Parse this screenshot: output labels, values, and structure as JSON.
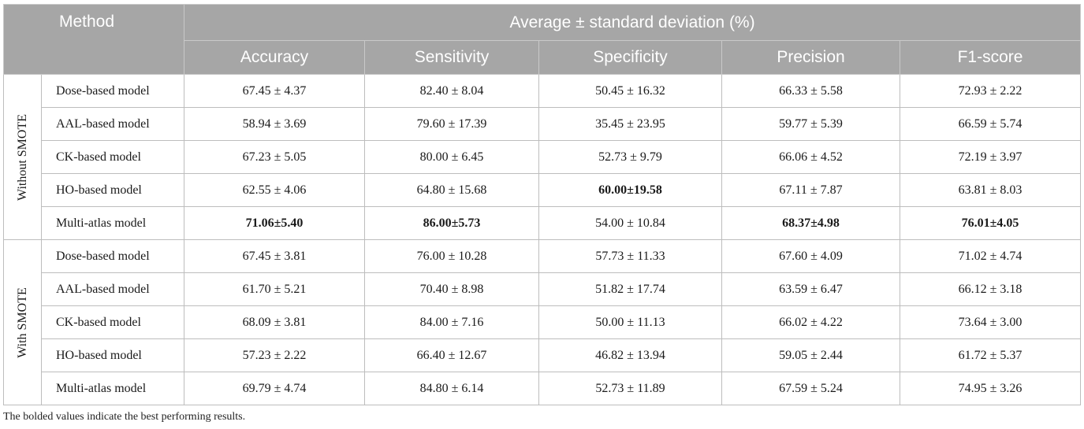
{
  "header": {
    "method": "Method",
    "group_header": "Average ± standard deviation (%)",
    "columns": [
      "Accuracy",
      "Sensitivity",
      "Specificity",
      "Precision",
      "F1-score"
    ]
  },
  "groups": [
    {
      "label": "Without SMOTE",
      "rows": [
        {
          "model": "Dose-based model",
          "values": [
            "67.45 ± 4.37",
            "82.40 ± 8.04",
            "50.45 ± 16.32",
            "66.33 ± 5.58",
            "72.93 ± 2.22"
          ],
          "best": [
            false,
            false,
            false,
            false,
            false
          ]
        },
        {
          "model": "AAL-based model",
          "values": [
            "58.94 ± 3.69",
            "79.60 ± 17.39",
            "35.45 ± 23.95",
            "59.77 ± 5.39",
            "66.59 ± 5.74"
          ],
          "best": [
            false,
            false,
            false,
            false,
            false
          ]
        },
        {
          "model": "CK-based model",
          "values": [
            "67.23 ± 5.05",
            "80.00 ± 6.45",
            "52.73 ± 9.79",
            "66.06 ± 4.52",
            "72.19 ± 3.97"
          ],
          "best": [
            false,
            false,
            false,
            false,
            false
          ]
        },
        {
          "model": "HO-based model",
          "values": [
            "62.55 ± 4.06",
            "64.80 ± 15.68",
            "60.00±19.58",
            "67.11 ± 7.87",
            "63.81 ± 8.03"
          ],
          "best": [
            false,
            false,
            true,
            false,
            false
          ]
        },
        {
          "model": "Multi-atlas model",
          "values": [
            "71.06±5.40",
            "86.00±5.73",
            "54.00 ± 10.84",
            "68.37±4.98",
            "76.01±4.05"
          ],
          "best": [
            true,
            true,
            false,
            true,
            true
          ]
        }
      ]
    },
    {
      "label": "With SMOTE",
      "rows": [
        {
          "model": "Dose-based model",
          "values": [
            "67.45 ± 3.81",
            "76.00 ± 10.28",
            "57.73 ± 11.33",
            "67.60 ± 4.09",
            "71.02 ± 4.74"
          ],
          "best": [
            false,
            false,
            false,
            false,
            false
          ]
        },
        {
          "model": "AAL-based model",
          "values": [
            "61.70 ± 5.21",
            "70.40 ± 8.98",
            "51.82 ± 17.74",
            "63.59 ± 6.47",
            "66.12 ± 3.18"
          ],
          "best": [
            false,
            false,
            false,
            false,
            false
          ]
        },
        {
          "model": "CK-based model",
          "values": [
            "68.09 ± 3.81",
            "84.00 ± 7.16",
            "50.00 ± 11.13",
            "66.02 ± 4.22",
            "73.64 ± 3.00"
          ],
          "best": [
            false,
            false,
            false,
            false,
            false
          ]
        },
        {
          "model": "HO-based model",
          "values": [
            "57.23 ± 2.22",
            "66.40 ± 12.67",
            "46.82 ± 13.94",
            "59.05 ± 2.44",
            "61.72 ± 5.37"
          ],
          "best": [
            false,
            false,
            false,
            false,
            false
          ]
        },
        {
          "model": "Multi-atlas model",
          "values": [
            "69.79 ± 4.74",
            "84.80 ± 6.14",
            "52.73 ± 11.89",
            "67.59 ± 5.24",
            "74.95 ± 3.26"
          ],
          "best": [
            false,
            false,
            false,
            false,
            false
          ]
        }
      ]
    }
  ],
  "footnote": "The bolded values indicate the best performing results."
}
